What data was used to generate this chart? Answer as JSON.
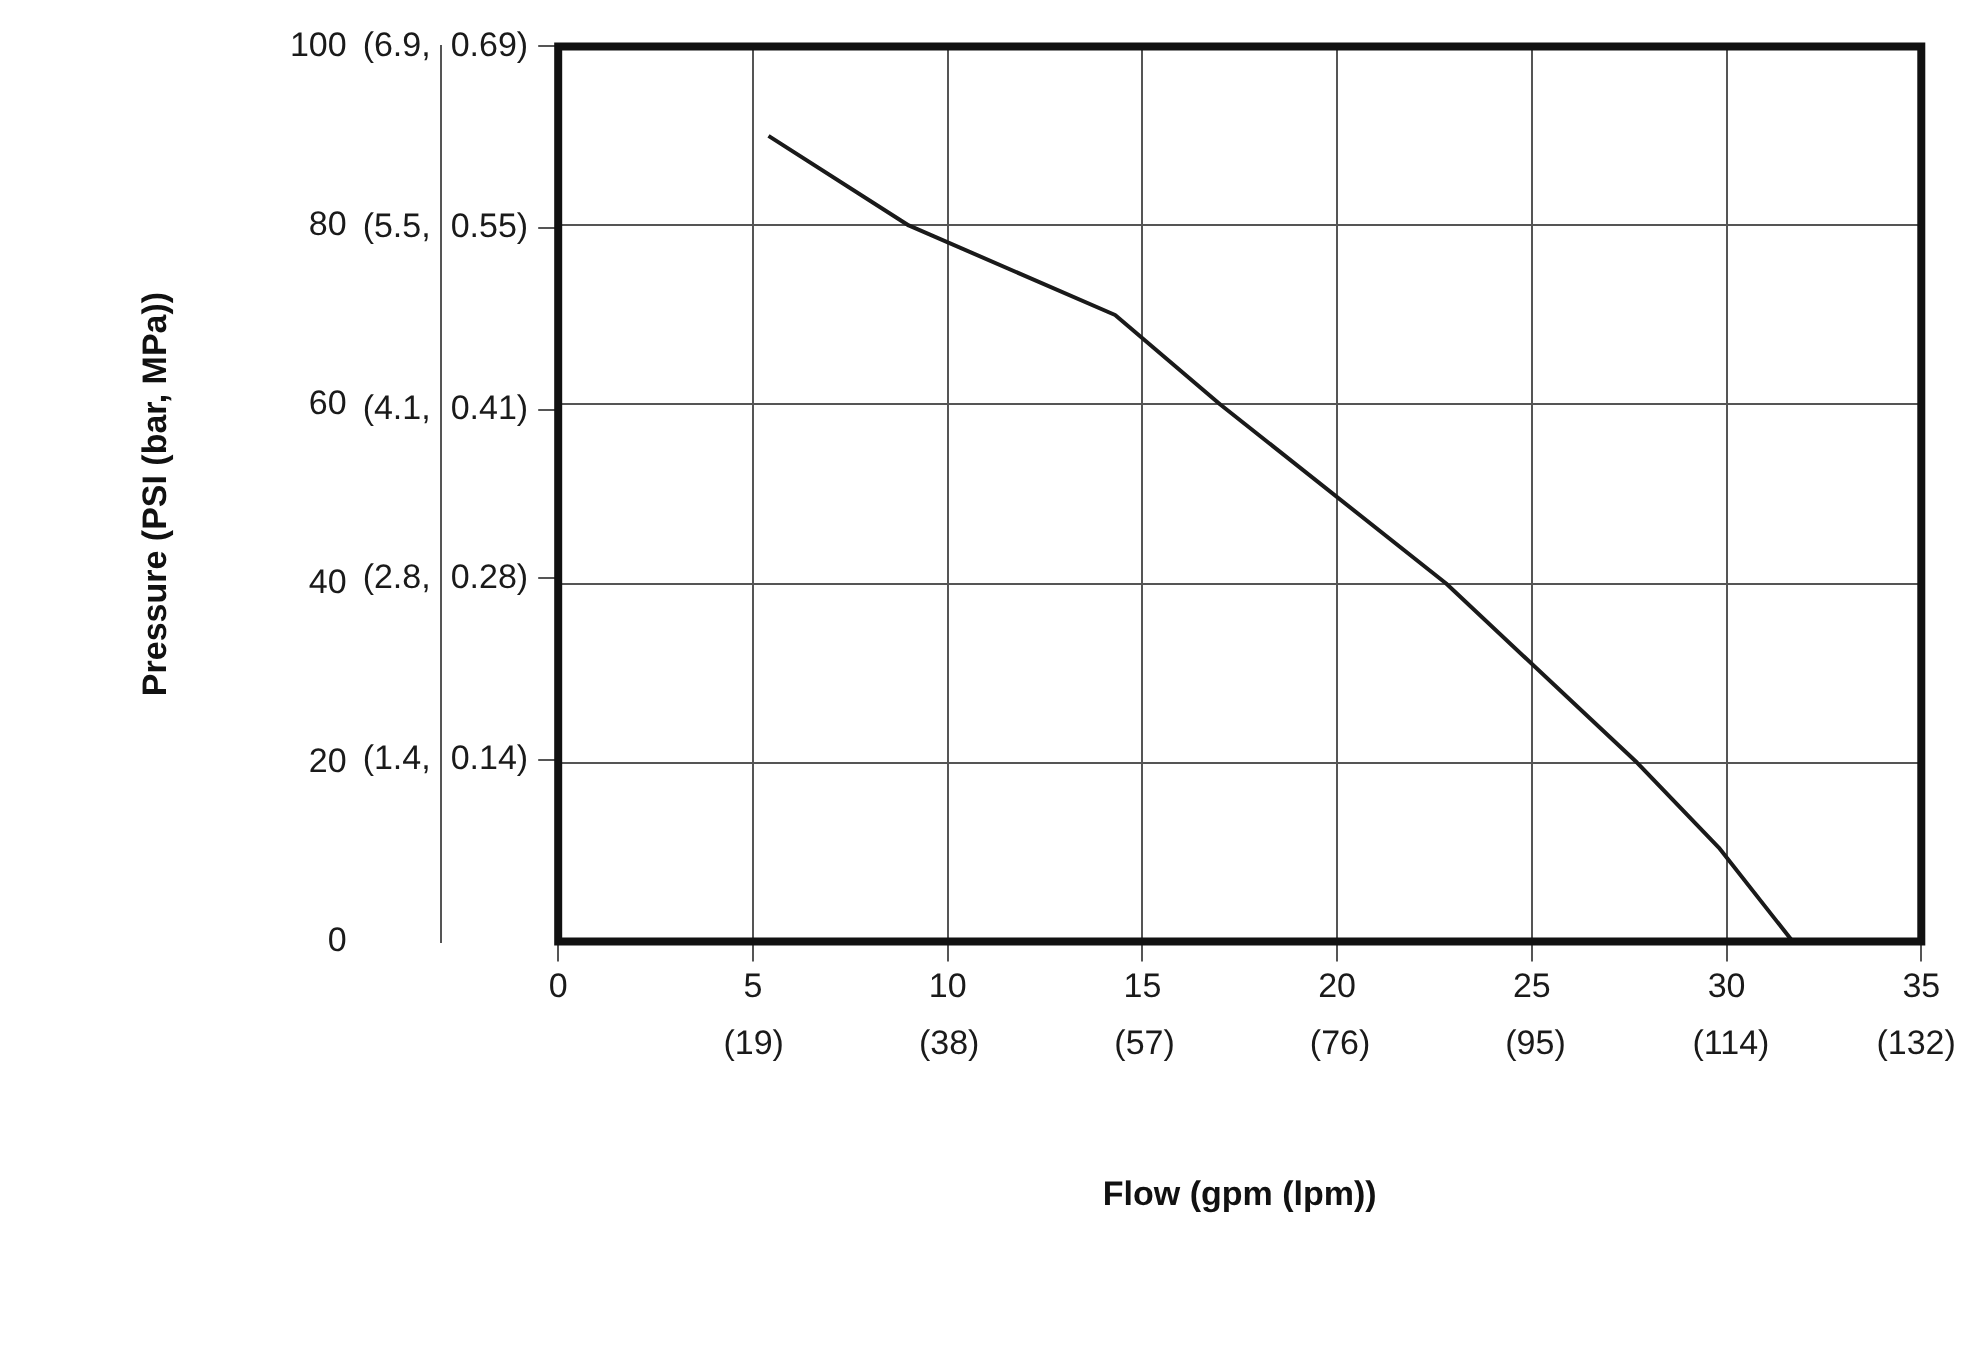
{
  "chart_data": {
    "type": "line",
    "xlabel": "Flow (gpm (lpm))",
    "ylabel": "Pressure (PSI (bar, MPa))",
    "x": [
      5.4,
      9,
      14.3,
      17,
      22.8,
      27.7,
      29.8,
      31.7
    ],
    "series": [
      {
        "color": "#1a1a1a",
        "values": [
          90,
          80,
          70,
          60,
          40,
          20,
          10.5,
          0
        ]
      }
    ],
    "xlim": [
      0,
      35
    ],
    "xticks": [
      0,
      5,
      10,
      15,
      20,
      25,
      30,
      35
    ],
    "x2lim": [
      0,
      132.5
    ],
    "x2ticks": [
      {
        "value": 19,
        "label": "(19)"
      },
      {
        "value": 38,
        "label": "(38)"
      },
      {
        "value": 57,
        "label": "(57)"
      },
      {
        "value": 76,
        "label": "(76)"
      },
      {
        "value": 95,
        "label": "(95)"
      },
      {
        "value": 114,
        "label": "(114)"
      },
      {
        "value": 132,
        "label": "(132)"
      }
    ],
    "ylim": [
      0,
      100
    ],
    "yticks": [
      0,
      20,
      40,
      60,
      80,
      100
    ],
    "y2lim": [
      0,
      6.9
    ],
    "y2ticks": [
      {
        "value": 1.4,
        "label": "(1.4,"
      },
      {
        "value": 2.8,
        "label": "(2.8,"
      },
      {
        "value": 4.1,
        "label": "(4.1,"
      },
      {
        "value": 5.5,
        "label": "(5.5,"
      },
      {
        "value": 6.9,
        "label": "(6.9,"
      }
    ],
    "y3lim": [
      0,
      0.69
    ],
    "y3ticks": [
      {
        "value": 0.14,
        "label": "0.14)"
      },
      {
        "value": 0.28,
        "label": "0.28)"
      },
      {
        "value": 0.41,
        "label": "0.41)"
      },
      {
        "value": 0.55,
        "label": "0.55)"
      },
      {
        "value": 0.69,
        "label": "0.69)"
      }
    ],
    "grid": true,
    "legend": false,
    "marker": "none",
    "line_style": "solid"
  }
}
